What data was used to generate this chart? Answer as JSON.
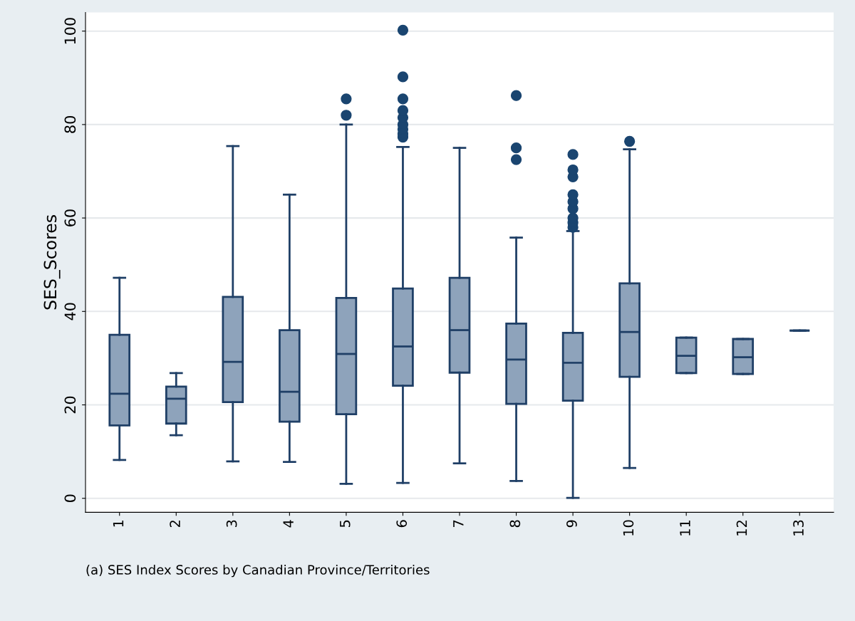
{
  "chart_data": {
    "type": "box",
    "ylabel": "SES_Scores",
    "categories": [
      "1",
      "2",
      "3",
      "4",
      "5",
      "6",
      "7",
      "8",
      "9",
      "10",
      "11",
      "12",
      "13"
    ],
    "boxes": [
      {
        "low": 8.2,
        "q1": 15.6,
        "median": 22.4,
        "q3": 35,
        "high": 47.2
      },
      {
        "low": 13.5,
        "q1": 16,
        "median": 21.3,
        "q3": 23.9,
        "high": 26.8
      },
      {
        "low": 7.9,
        "q1": 20.6,
        "median": 29.2,
        "q3": 43.1,
        "high": 75.4
      },
      {
        "low": 7.8,
        "q1": 16.4,
        "median": 22.8,
        "q3": 36,
        "high": 65
      },
      {
        "low": 3.1,
        "q1": 18,
        "median": 30.9,
        "q3": 42.9,
        "high": 80,
        "outliers": [
          82,
          85.5
        ]
      },
      {
        "low": 3.3,
        "q1": 24.1,
        "median": 32.5,
        "q3": 44.9,
        "high": 75.2,
        "outliers": [
          77.3,
          78,
          79,
          80,
          81.5,
          83,
          85.5,
          90.2,
          100.2
        ]
      },
      {
        "low": 7.5,
        "q1": 26.9,
        "median": 36,
        "q3": 47.2,
        "high": 75
      },
      {
        "low": 3.7,
        "q1": 20.2,
        "median": 29.7,
        "q3": 37.4,
        "high": 55.8,
        "outliers": [
          72.5,
          75,
          86.2
        ]
      },
      {
        "low": 0.1,
        "q1": 20.9,
        "median": 29,
        "q3": 35.4,
        "high": 57.2,
        "outliers": [
          58,
          59,
          60,
          62,
          63.5,
          65,
          68.8,
          70.3,
          73.6
        ]
      },
      {
        "low": 6.5,
        "q1": 26,
        "median": 35.6,
        "q3": 46,
        "high": 74.7,
        "outliers": [
          76.4
        ]
      },
      {
        "low": 26.8,
        "q1": 26.8,
        "median": 30.5,
        "q3": 34.4,
        "high": 34.4
      },
      {
        "low": 26.6,
        "q1": 26.6,
        "median": 30.2,
        "q3": 34.1,
        "high": 34.1
      },
      {
        "low": 35.9,
        "q1": 35.9,
        "median": 35.9,
        "q3": 35.9,
        "high": 35.9
      }
    ],
    "colors": [
      "#8ea3bb",
      "#8ea3bb",
      "#8ea3bb",
      "#8ea3bb",
      "#8ea3bb",
      "#8ea3bb",
      "#8ea3bb",
      "#8ea3bb",
      "#8ea3bb",
      "#8ea3bb",
      "#8ea3bb",
      "#8ea3bb",
      "#1f3f66"
    ],
    "ylim": [
      -3,
      104
    ],
    "yticks": [
      0,
      20,
      40,
      60,
      80,
      100
    ],
    "grid": "y",
    "annotations": [
      "(a) SES Index Scores by Canadian Province/Territories"
    ]
  }
}
